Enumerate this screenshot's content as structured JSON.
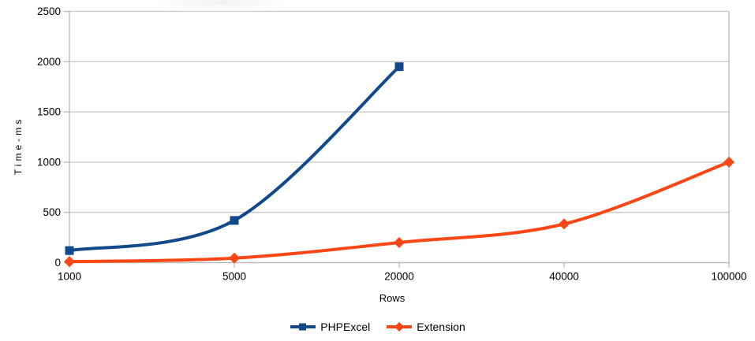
{
  "chart_data": {
    "type": "line",
    "title": "",
    "xlabel": "Rows",
    "ylabel": "Time-ms",
    "categories": [
      "1000",
      "5000",
      "20000",
      "40000",
      "100000"
    ],
    "y_ticks": [
      0,
      500,
      1000,
      1500,
      2000,
      2500
    ],
    "ylim": [
      0,
      2500
    ],
    "grid": "horizontal",
    "legend_position": "bottom-center",
    "smooth_lines": true,
    "series": [
      {
        "name": "PHPExcel",
        "marker": "square",
        "color": "#11498a",
        "values": [
          120,
          420,
          1950,
          null,
          null
        ]
      },
      {
        "name": "Extension",
        "marker": "diamond",
        "color": "#fb4716",
        "values": [
          10,
          45,
          200,
          385,
          1000
        ]
      }
    ]
  },
  "colors": {
    "grid": "#c9c9c9",
    "axis": "#b9b9b9",
    "text": "#000000",
    "background": "#ffffff"
  }
}
